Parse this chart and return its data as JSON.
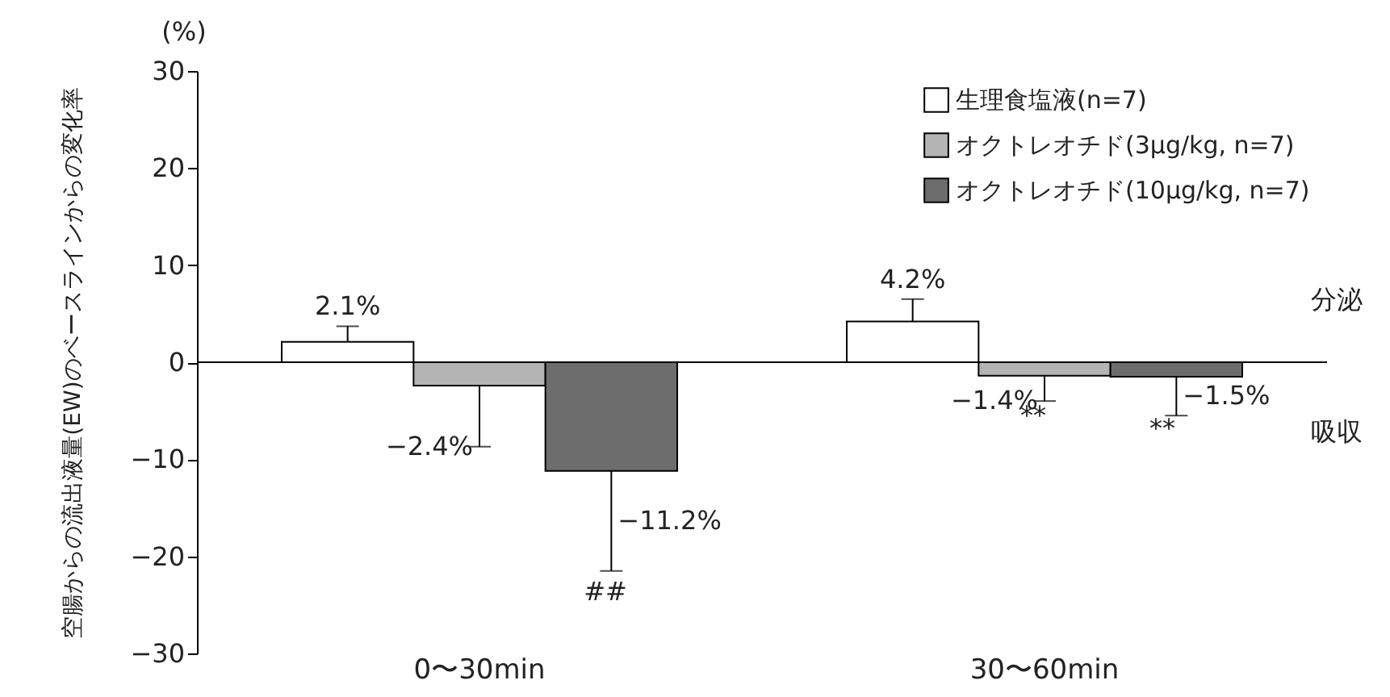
{
  "chart_data": {
    "type": "bar",
    "ylabel": "空腸からの流出液量(EW)のベースラインからの変化率",
    "categories": [
      "0〜30min",
      "30〜60min"
    ],
    "series": [
      {
        "name": "生理食塩液(n=7)",
        "color": "#ffffff",
        "values": [
          2.1,
          4.2
        ],
        "errors": [
          [
            2.1,
            3.7
          ],
          [
            4.2,
            6.5
          ]
        ],
        "value_labels": [
          "2.1%",
          "4.2%"
        ]
      },
      {
        "name": "オクトレオチド(3μg/kg, n=7)",
        "color": "#b4b4b4",
        "values": [
          -2.4,
          -1.4
        ],
        "errors": [
          [
            -8.7,
            -2.4
          ],
          [
            -4,
            -1.4
          ]
        ],
        "value_labels": [
          "−2.4%",
          "−1.4%"
        ]
      },
      {
        "name": "オクトレオチド(10μg/kg, n=7)",
        "color": "#6d6d6d",
        "values": [
          -11.2,
          -1.5
        ],
        "errors": [
          [
            -21.5,
            -11.2
          ],
          [
            -5.5,
            -1.5
          ]
        ],
        "value_labels": [
          "−11.2%",
          "−1.5%"
        ]
      }
    ],
    "ylim": [
      -30,
      30
    ],
    "yticks": [
      -30,
      -20,
      -10,
      0,
      10,
      20,
      30
    ],
    "ref_lines": [
      {
        "axis": "y",
        "value": 0
      }
    ],
    "legend": "top right",
    "annotations": [
      "(%)",
      "分泌",
      "吸収",
      "##",
      "**",
      "**"
    ]
  }
}
